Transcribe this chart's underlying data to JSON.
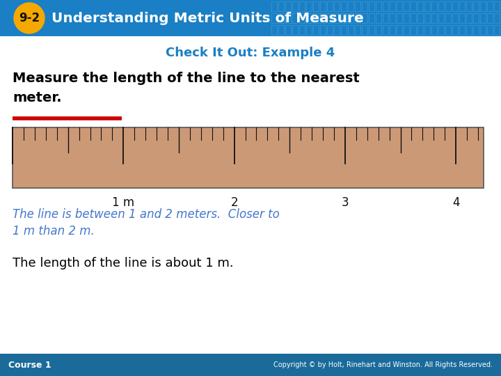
{
  "title_badge": "9-2",
  "title_text": "Understanding Metric Units of Measure",
  "subtitle": "Check It Out: Example 4",
  "instruction_line1": "Measure the length of the line to the nearest",
  "instruction_line2": "meter.",
  "italic_line1": "The line is between 1 and 2 meters.  Closer to",
  "italic_line2": "1 m than 2 m.",
  "conclusion": "The length of the line is about 1 m.",
  "footer_left": "Course 1",
  "footer_right": "Copyright © by Holt, Rinehart and Winston. All Rights Reserved.",
  "header_bg": "#1a7fc4",
  "badge_bg": "#f5a800",
  "badge_text_color": "#111111",
  "header_text_color": "#ffffff",
  "body_bg": "#ffffff",
  "footer_bg": "#1a6a9a",
  "footer_text_color": "#ffffff",
  "subtitle_color": "#1a7fc4",
  "ruler_bg": "#cc9977",
  "ruler_border": "#555555",
  "red_color": "#cc0000",
  "italic_color": "#4477cc",
  "conclusion_color": "#000000",
  "instruction_color": "#000000"
}
